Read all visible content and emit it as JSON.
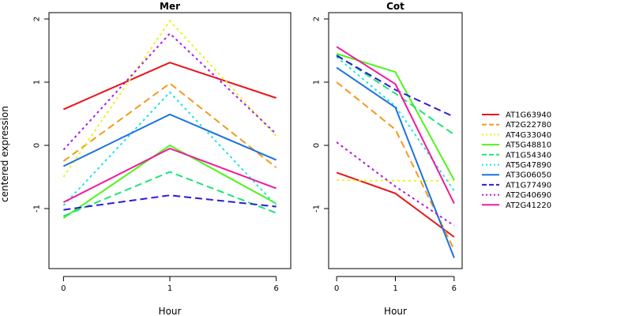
{
  "chart_data": {
    "type": "line",
    "ylabel": "centered expression",
    "xlabel": "Hour",
    "x_ticks": [
      "0",
      "1",
      "6"
    ],
    "y_ticks": [
      -1,
      0,
      1,
      2
    ],
    "ylim": [
      -1.95,
      2.1
    ],
    "legend_position": "right",
    "series": [
      {
        "name": "AT1G63940",
        "color": "#e8151b",
        "dash": "solid"
      },
      {
        "name": "AT2G22780",
        "color": "#f39a1b",
        "dash": "longdash"
      },
      {
        "name": "AT4G33040",
        "color": "#e9f51b",
        "dash": "dotted"
      },
      {
        "name": "AT5G48810",
        "color": "#4ef51b",
        "dash": "solid"
      },
      {
        "name": "AT1G54340",
        "color": "#1be577",
        "dash": "longdash"
      },
      {
        "name": "AT5G47890",
        "color": "#1be5e5",
        "dash": "dotted"
      },
      {
        "name": "AT3G06050",
        "color": "#1b72e0",
        "dash": "solid"
      },
      {
        "name": "AT1G77490",
        "color": "#2b1bd8",
        "dash": "longdash"
      },
      {
        "name": "AT2G40690",
        "color": "#b01be0",
        "dash": "dotted"
      },
      {
        "name": "AT2G41220",
        "color": "#f01b9c",
        "dash": "solid"
      }
    ],
    "panels": [
      {
        "title": "Mer",
        "values": [
          [
            0.57,
            1.31,
            0.75
          ],
          [
            -0.25,
            0.98,
            -0.35
          ],
          [
            -0.5,
            1.97,
            0.15
          ],
          [
            -1.15,
            0.0,
            -0.92
          ],
          [
            -1.12,
            -0.42,
            -1.07
          ],
          [
            -0.95,
            0.84,
            -0.95
          ],
          [
            -0.33,
            0.49,
            -0.23
          ],
          [
            -1.02,
            -0.79,
            -0.97
          ],
          [
            -0.07,
            1.77,
            0.18
          ],
          [
            -0.9,
            -0.05,
            -0.68
          ]
        ]
      },
      {
        "title": "Cot",
        "values": [
          [
            -0.43,
            -0.76,
            -1.45
          ],
          [
            1.0,
            0.25,
            -1.65
          ],
          [
            -0.55,
            -0.56,
            -0.56
          ],
          [
            1.45,
            1.16,
            -0.55
          ],
          [
            1.43,
            0.82,
            0.17
          ],
          [
            1.4,
            0.62,
            -0.72
          ],
          [
            1.23,
            0.6,
            -1.78
          ],
          [
            1.42,
            0.88,
            0.45
          ],
          [
            0.05,
            -0.65,
            -1.27
          ],
          [
            1.56,
            0.97,
            -0.92
          ]
        ]
      }
    ]
  }
}
